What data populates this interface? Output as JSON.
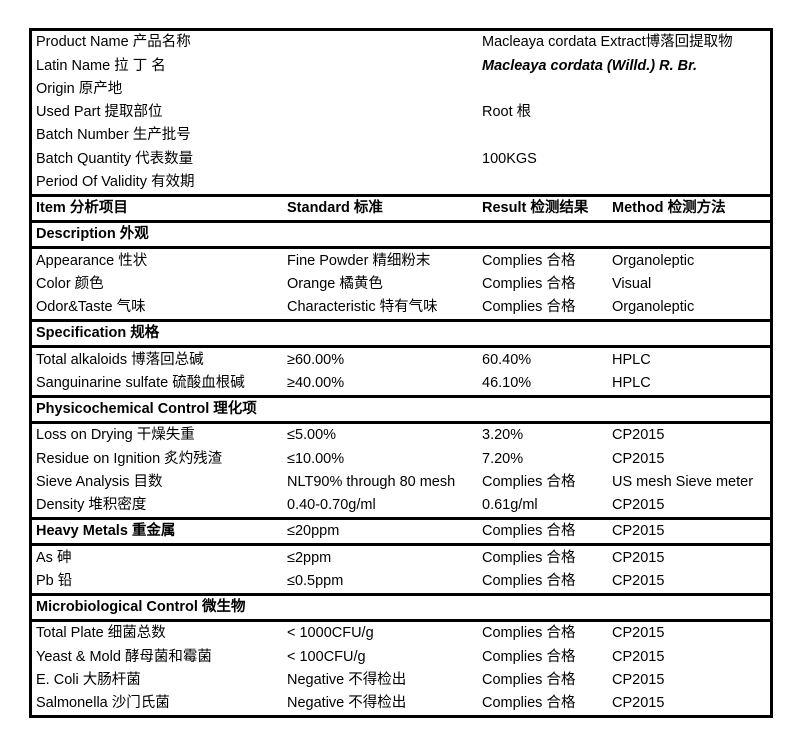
{
  "meta": {
    "document_type": "Certificate of Analysis table",
    "colors": {
      "background": "#ffffff",
      "text": "#000000",
      "border": "#000000"
    }
  },
  "product_info": [
    {
      "label": "Product Name 产品名称",
      "value": "Macleaya cordata Extract博落回提取物",
      "value_style": "normal"
    },
    {
      "label": "Latin Name 拉 丁 名",
      "value": "Macleaya cordata (Willd.) R. Br.",
      "value_style": "bold-italic"
    },
    {
      "label": "Origin 原产地",
      "value": "",
      "value_style": "normal"
    },
    {
      "label": "Used Part 提取部位",
      "value": "Root 根",
      "value_style": "normal"
    },
    {
      "label": "Batch Number 生产批号",
      "value": "",
      "value_style": "normal"
    },
    {
      "label": "Batch Quantity 代表数量",
      "value": "100KGS",
      "value_style": "normal"
    },
    {
      "label": "Period Of Validity 有效期",
      "value": "",
      "value_style": "normal"
    }
  ],
  "columns": [
    "Item 分析项目",
    "Standard 标准",
    "Result 检测结果",
    "Method 检测方法"
  ],
  "sections": [
    {
      "title": "Description 外观",
      "rows": [
        {
          "item": "Appearance 性状",
          "standard": "Fine Powder 精细粉末",
          "result": "Complies 合格",
          "method": "Organoleptic"
        },
        {
          "item": "Color 颜色",
          "standard": "Orange 橘黄色",
          "result": "Complies 合格",
          "method": "Visual"
        },
        {
          "item": "Odor&Taste 气味",
          "standard": "Characteristic 特有气味",
          "result": "Complies 合格",
          "method": "Organoleptic"
        }
      ]
    },
    {
      "title": "Specification 规格",
      "rows": [
        {
          "item": "Total alkaloids 博落回总碱",
          "standard": "≥60.00%",
          "result": "60.40%",
          "method": "HPLC"
        },
        {
          "item": "Sanguinarine sulfate 硫酸血根碱",
          "standard": "≥40.00%",
          "result": "46.10%",
          "method": "HPLC"
        }
      ]
    },
    {
      "title": "Physicochemical Control 理化项",
      "rows": [
        {
          "item": "Loss on Drying 干燥失重",
          "standard": "≤5.00%",
          "result": "3.20%",
          "method": "CP2015"
        },
        {
          "item": "Residue on Ignition 炙灼残渣",
          "standard": "≤10.00%",
          "result": "7.20%",
          "method": "CP2015"
        },
        {
          "item": "Sieve Analysis 目数",
          "standard": "NLT90% through 80 mesh",
          "result": "Complies 合格",
          "method": "US mesh Sieve meter"
        },
        {
          "item": "Density 堆积密度",
          "standard": "0.40-0.70g/ml",
          "result": "0.61g/ml",
          "method": "CP2015"
        }
      ]
    },
    {
      "title": "Heavy Metals 重金属",
      "title_values": {
        "standard": "≤20ppm",
        "result": "Complies 合格",
        "method": "CP2015"
      },
      "rows": [
        {
          "item": "As 砷",
          "standard": "≤2ppm",
          "result": "Complies 合格",
          "method": "CP2015"
        },
        {
          "item": "Pb 铅",
          "standard": "≤0.5ppm",
          "result": "Complies 合格",
          "method": "CP2015"
        }
      ]
    },
    {
      "title": "Microbiological Control 微生物",
      "rows": [
        {
          "item": "Total Plate 细菌总数",
          "standard": "< 1000CFU/g",
          "result": "Complies 合格",
          "method": "CP2015"
        },
        {
          "item": "Yeast & Mold 酵母菌和霉菌",
          "standard": "< 100CFU/g",
          "result": "Complies 合格",
          "method": "CP2015"
        },
        {
          "item": "E. Coli 大肠杆菌",
          "standard": "Negative 不得检出",
          "result": "Complies 合格",
          "method": "CP2015"
        },
        {
          "item": "Salmonella 沙门氏菌",
          "standard": "Negative 不得检出",
          "result": "Complies 合格",
          "method": "CP2015"
        }
      ]
    }
  ]
}
